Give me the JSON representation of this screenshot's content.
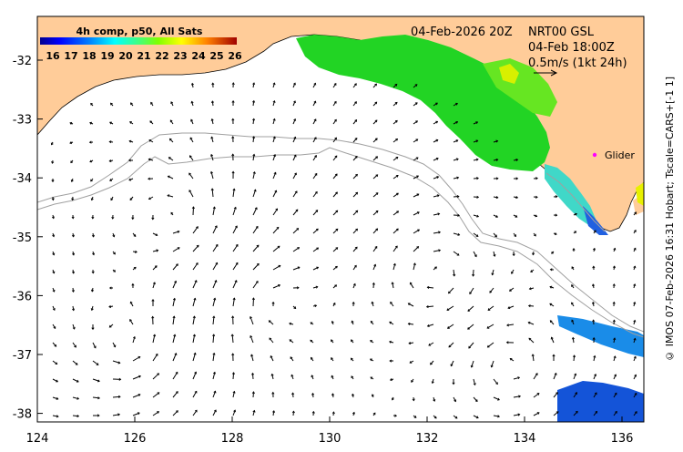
{
  "colorbar": {
    "title": "4h comp, p50, All Sats",
    "ticks": [
      "16",
      "17",
      "18",
      "19",
      "20",
      "21",
      "22",
      "23",
      "24",
      "25",
      "26"
    ],
    "colors": [
      "#00008f",
      "#0000ff",
      "#0060ff",
      "#00c0ff",
      "#40ffbf",
      "#00e000",
      "#a0e000",
      "#ffff00",
      "#ffa000",
      "#ff3000",
      "#a00000"
    ]
  },
  "header": {
    "date": "04-Feb-2026 20Z",
    "product": "NRT00 GSL",
    "obs_time": "04-Feb 18:00Z",
    "scale_label": "0.5m/s (1kt 24h)"
  },
  "glider": {
    "label": "Glider",
    "color": "#ff00ff",
    "lon": 135.3,
    "lat": -33.62
  },
  "axes": {
    "x_ticks": [
      "124",
      "126",
      "128",
      "130",
      "132",
      "134",
      "136"
    ],
    "y_ticks": [
      "-32",
      "-33",
      "-34",
      "-35",
      "-36",
      "-37",
      "-38"
    ]
  },
  "credit": "© IMOS 07-Feb-2026 16:31 Hobart; Tscale=CARS+[-1 1]",
  "colors": {
    "land": "#ffcc99",
    "sea": "#ffffff",
    "bathy": "#a0a0a0"
  }
}
